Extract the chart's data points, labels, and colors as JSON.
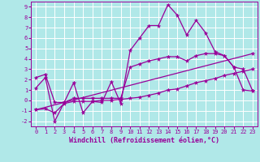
{
  "background_color": "#b0e8e8",
  "grid_color": "#ffffff",
  "line_color": "#990099",
  "xlabel": "Windchill (Refroidissement éolien,°C)",
  "xlabel_fontsize": 6.0,
  "xtick_labels": [
    "0",
    "1",
    "2",
    "3",
    "4",
    "5",
    "6",
    "7",
    "8",
    "9",
    "10",
    "11",
    "12",
    "13",
    "14",
    "15",
    "16",
    "17",
    "18",
    "19",
    "20",
    "21",
    "22",
    "23"
  ],
  "ytick_labels": [
    "-2",
    "-1",
    "0",
    "1",
    "2",
    "3",
    "4",
    "5",
    "6",
    "7",
    "8",
    "9"
  ],
  "ylim": [
    -2.5,
    9.5
  ],
  "xlim": [
    -0.5,
    23.5
  ],
  "series1_x": [
    0,
    1,
    2,
    3,
    4,
    5,
    6,
    7,
    8,
    9,
    10,
    11,
    12,
    13,
    14,
    15,
    16,
    17,
    18,
    19,
    20,
    21,
    22,
    23
  ],
  "series1_y": [
    1.2,
    2.2,
    -2.0,
    -0.2,
    1.7,
    -1.2,
    -0.1,
    -0.2,
    1.8,
    -0.3,
    4.8,
    6.0,
    7.2,
    7.2,
    9.2,
    8.2,
    6.3,
    7.7,
    6.5,
    4.7,
    4.3,
    3.2,
    1.0,
    0.9
  ],
  "series2_x": [
    0,
    1,
    2,
    3,
    4,
    5,
    6,
    7,
    8,
    9,
    10,
    11,
    12,
    13,
    14,
    15,
    16,
    17,
    18,
    19,
    20,
    21,
    22,
    23
  ],
  "series2_y": [
    2.2,
    2.5,
    -0.2,
    -0.2,
    0.2,
    0.2,
    0.2,
    0.2,
    0.2,
    0.2,
    3.2,
    3.5,
    3.8,
    4.0,
    4.2,
    4.2,
    3.8,
    4.3,
    4.5,
    4.5,
    4.3,
    3.2,
    3.0,
    0.9
  ],
  "series3_x": [
    0,
    1,
    2,
    3,
    4,
    5,
    6,
    7,
    8,
    9,
    10,
    11,
    12,
    13,
    14,
    15,
    16,
    17,
    18,
    19,
    20,
    21,
    22,
    23
  ],
  "series3_y": [
    -0.9,
    -0.8,
    -1.2,
    -0.3,
    -0.1,
    -0.1,
    -0.1,
    0.0,
    0.0,
    0.1,
    0.2,
    0.3,
    0.5,
    0.7,
    1.0,
    1.1,
    1.4,
    1.7,
    1.9,
    2.1,
    2.4,
    2.6,
    2.8,
    3.0
  ],
  "series4_x": [
    0,
    23
  ],
  "series4_y": [
    -0.9,
    4.5
  ],
  "tick_fontsize": 5.0,
  "linewidth": 0.9,
  "marker": "*",
  "markersize": 3.5
}
